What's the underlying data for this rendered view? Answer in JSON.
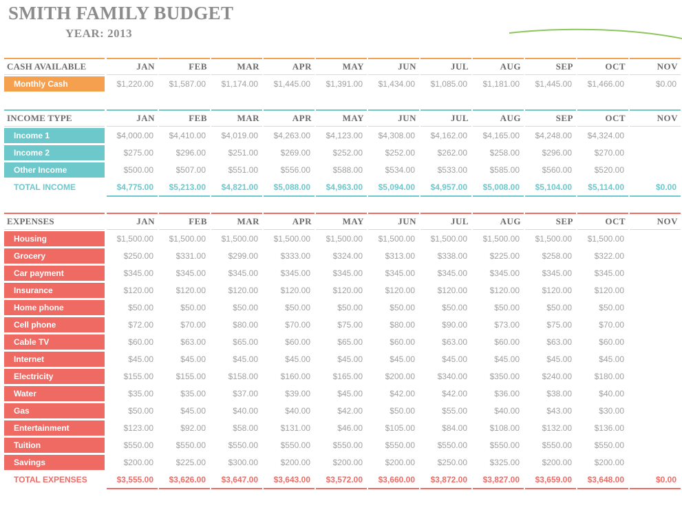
{
  "title": "SMITH FAMILY BUDGET",
  "year_label": "YEAR:",
  "year_value": "2013",
  "months": [
    "JAN",
    "FEB",
    "MAR",
    "APR",
    "MAY",
    "JUN",
    "JUL",
    "AUG",
    "SEP",
    "OCT",
    "NOV"
  ],
  "colors": {
    "cash": "#f5a04e",
    "income": "#6cc8cb",
    "expense": "#f06a64",
    "swoosh": "#8cc65a"
  },
  "cash": {
    "header": "CASH AVAILABLE",
    "rows": [
      {
        "label": "Monthly Cash",
        "values": [
          "$1,220.00",
          "$1,587.00",
          "$1,174.00",
          "$1,445.00",
          "$1,391.00",
          "$1,434.00",
          "$1,085.00",
          "$1,181.00",
          "$1,445.00",
          "$1,466.00",
          "$0.00"
        ]
      }
    ]
  },
  "income": {
    "header": "INCOME TYPE",
    "rows": [
      {
        "label": "Income 1",
        "values": [
          "$4,000.00",
          "$4,410.00",
          "$4,019.00",
          "$4,263.00",
          "$4,123.00",
          "$4,308.00",
          "$4,162.00",
          "$4,165.00",
          "$4,248.00",
          "$4,324.00",
          ""
        ]
      },
      {
        "label": "Income 2",
        "values": [
          "$275.00",
          "$296.00",
          "$251.00",
          "$269.00",
          "$252.00",
          "$252.00",
          "$262.00",
          "$258.00",
          "$296.00",
          "$270.00",
          ""
        ]
      },
      {
        "label": "Other Income",
        "values": [
          "$500.00",
          "$507.00",
          "$551.00",
          "$556.00",
          "$588.00",
          "$534.00",
          "$533.00",
          "$585.00",
          "$560.00",
          "$520.00",
          ""
        ]
      }
    ],
    "total_label": "TOTAL INCOME",
    "totals": [
      "$4,775.00",
      "$5,213.00",
      "$4,821.00",
      "$5,088.00",
      "$4,963.00",
      "$5,094.00",
      "$4,957.00",
      "$5,008.00",
      "$5,104.00",
      "$5,114.00",
      "$0.00"
    ]
  },
  "expenses": {
    "header": "EXPENSES",
    "rows": [
      {
        "label": "Housing",
        "values": [
          "$1,500.00",
          "$1,500.00",
          "$1,500.00",
          "$1,500.00",
          "$1,500.00",
          "$1,500.00",
          "$1,500.00",
          "$1,500.00",
          "$1,500.00",
          "$1,500.00",
          ""
        ]
      },
      {
        "label": "Grocery",
        "values": [
          "$250.00",
          "$331.00",
          "$299.00",
          "$333.00",
          "$324.00",
          "$313.00",
          "$338.00",
          "$225.00",
          "$258.00",
          "$322.00",
          ""
        ]
      },
      {
        "label": "Car payment",
        "values": [
          "$345.00",
          "$345.00",
          "$345.00",
          "$345.00",
          "$345.00",
          "$345.00",
          "$345.00",
          "$345.00",
          "$345.00",
          "$345.00",
          ""
        ]
      },
      {
        "label": "Insurance",
        "values": [
          "$120.00",
          "$120.00",
          "$120.00",
          "$120.00",
          "$120.00",
          "$120.00",
          "$120.00",
          "$120.00",
          "$120.00",
          "$120.00",
          ""
        ]
      },
      {
        "label": "Home phone",
        "values": [
          "$50.00",
          "$50.00",
          "$50.00",
          "$50.00",
          "$50.00",
          "$50.00",
          "$50.00",
          "$50.00",
          "$50.00",
          "$50.00",
          ""
        ]
      },
      {
        "label": "Cell phone",
        "values": [
          "$72.00",
          "$70.00",
          "$80.00",
          "$70.00",
          "$75.00",
          "$80.00",
          "$90.00",
          "$73.00",
          "$75.00",
          "$70.00",
          ""
        ]
      },
      {
        "label": "Cable TV",
        "values": [
          "$60.00",
          "$63.00",
          "$65.00",
          "$60.00",
          "$65.00",
          "$60.00",
          "$63.00",
          "$60.00",
          "$63.00",
          "$60.00",
          ""
        ]
      },
      {
        "label": "Internet",
        "values": [
          "$45.00",
          "$45.00",
          "$45.00",
          "$45.00",
          "$45.00",
          "$45.00",
          "$45.00",
          "$45.00",
          "$45.00",
          "$45.00",
          ""
        ]
      },
      {
        "label": "Electricity",
        "values": [
          "$155.00",
          "$155.00",
          "$158.00",
          "$160.00",
          "$165.00",
          "$200.00",
          "$340.00",
          "$350.00",
          "$240.00",
          "$180.00",
          ""
        ]
      },
      {
        "label": "Water",
        "values": [
          "$35.00",
          "$35.00",
          "$37.00",
          "$39.00",
          "$45.00",
          "$42.00",
          "$42.00",
          "$36.00",
          "$38.00",
          "$40.00",
          ""
        ]
      },
      {
        "label": "Gas",
        "values": [
          "$50.00",
          "$45.00",
          "$40.00",
          "$40.00",
          "$42.00",
          "$50.00",
          "$55.00",
          "$40.00",
          "$43.00",
          "$30.00",
          ""
        ]
      },
      {
        "label": "Entertainment",
        "values": [
          "$123.00",
          "$92.00",
          "$58.00",
          "$131.00",
          "$46.00",
          "$105.00",
          "$84.00",
          "$108.00",
          "$132.00",
          "$136.00",
          ""
        ]
      },
      {
        "label": "Tuition",
        "values": [
          "$550.00",
          "$550.00",
          "$550.00",
          "$550.00",
          "$550.00",
          "$550.00",
          "$550.00",
          "$550.00",
          "$550.00",
          "$550.00",
          ""
        ]
      },
      {
        "label": "Savings",
        "values": [
          "$200.00",
          "$225.00",
          "$300.00",
          "$200.00",
          "$200.00",
          "$200.00",
          "$250.00",
          "$325.00",
          "$200.00",
          "$200.00",
          ""
        ]
      }
    ],
    "total_label": "TOTAL EXPENSES",
    "totals": [
      "$3,555.00",
      "$3,626.00",
      "$3,647.00",
      "$3,643.00",
      "$3,572.00",
      "$3,660.00",
      "$3,872.00",
      "$3,827.00",
      "$3,659.00",
      "$3,648.00",
      "$0.00"
    ]
  }
}
